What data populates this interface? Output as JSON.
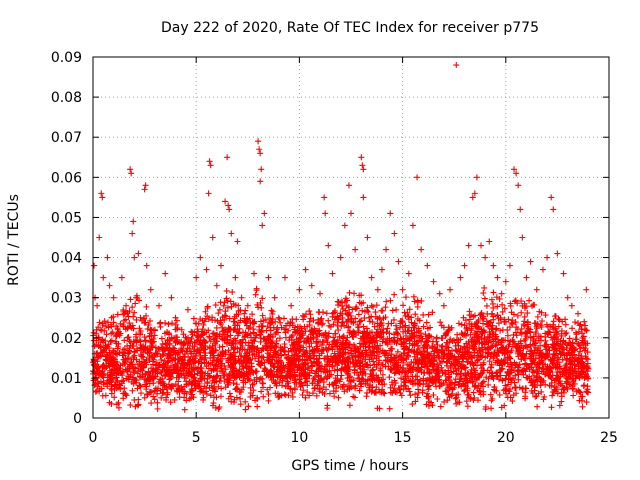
{
  "chart_data": {
    "type": "scatter",
    "title": "Day 222 of 2020, Rate Of TEC Index for receiver p775",
    "xlabel": "GPS time / hours",
    "ylabel": "ROTI / TECUs",
    "xlim": [
      0,
      25
    ],
    "ylim": [
      0,
      0.09
    ],
    "xticks": [
      0,
      5,
      10,
      15,
      20,
      25
    ],
    "yticks": [
      0,
      0.01,
      0.02,
      0.03,
      0.04,
      0.05,
      0.06,
      0.07,
      0.08,
      0.09
    ],
    "xtick_labels": [
      "0",
      "5",
      "10",
      "15",
      "20",
      "25"
    ],
    "ytick_labels": [
      "0",
      "0.01",
      "0.02",
      "0.03",
      "0.04",
      "0.05",
      "0.06",
      "0.07",
      "0.08",
      "0.09"
    ],
    "grid": true,
    "marker": "+",
    "color": "#ff0000",
    "series": [
      {
        "name": "ROTI",
        "points": [
          [
            0.0,
            0.011
          ],
          [
            0.05,
            0.038
          ],
          [
            0.1,
            0.03
          ],
          [
            0.15,
            0.021
          ],
          [
            0.2,
            0.028
          ],
          [
            0.3,
            0.045
          ],
          [
            0.35,
            0.022
          ],
          [
            0.4,
            0.056
          ],
          [
            0.45,
            0.055
          ],
          [
            0.5,
            0.035
          ],
          [
            0.6,
            0.018
          ],
          [
            0.7,
            0.04
          ],
          [
            0.8,
            0.033
          ],
          [
            0.9,
            0.025
          ],
          [
            1.0,
            0.03
          ],
          [
            1.2,
            0.022
          ],
          [
            1.4,
            0.035
          ],
          [
            1.6,
            0.028
          ],
          [
            1.8,
            0.062
          ],
          [
            1.85,
            0.061
          ],
          [
            1.9,
            0.046
          ],
          [
            1.95,
            0.049
          ],
          [
            2.0,
            0.04
          ],
          [
            2.1,
            0.03
          ],
          [
            2.2,
            0.041
          ],
          [
            2.3,
            0.025
          ],
          [
            2.5,
            0.057
          ],
          [
            2.55,
            0.058
          ],
          [
            2.6,
            0.038
          ],
          [
            2.8,
            0.032
          ],
          [
            3.0,
            0.022
          ],
          [
            3.2,
            0.028
          ],
          [
            3.5,
            0.036
          ],
          [
            3.8,
            0.03
          ],
          [
            4.0,
            0.025
          ],
          [
            4.3,
            0.022
          ],
          [
            4.6,
            0.027
          ],
          [
            5.0,
            0.035
          ],
          [
            5.2,
            0.04
          ],
          [
            5.5,
            0.037
          ],
          [
            5.6,
            0.056
          ],
          [
            5.65,
            0.064
          ],
          [
            5.7,
            0.063
          ],
          [
            5.8,
            0.045
          ],
          [
            6.0,
            0.033
          ],
          [
            6.2,
            0.038
          ],
          [
            6.4,
            0.054
          ],
          [
            6.5,
            0.065
          ],
          [
            6.55,
            0.053
          ],
          [
            6.6,
            0.052
          ],
          [
            6.7,
            0.046
          ],
          [
            6.9,
            0.035
          ],
          [
            7.0,
            0.044
          ],
          [
            7.2,
            0.03
          ],
          [
            7.5,
            0.028
          ],
          [
            7.8,
            0.036
          ],
          [
            8.0,
            0.069
          ],
          [
            8.05,
            0.067
          ],
          [
            8.1,
            0.066
          ],
          [
            8.15,
            0.062
          ],
          [
            8.1,
            0.059
          ],
          [
            8.2,
            0.048
          ],
          [
            8.3,
            0.051
          ],
          [
            8.5,
            0.035
          ],
          [
            8.8,
            0.03
          ],
          [
            9.0,
            0.025
          ],
          [
            9.3,
            0.035
          ],
          [
            9.6,
            0.028
          ],
          [
            10.0,
            0.032
          ],
          [
            10.3,
            0.037
          ],
          [
            10.6,
            0.033
          ],
          [
            11.0,
            0.031
          ],
          [
            11.2,
            0.055
          ],
          [
            11.25,
            0.051
          ],
          [
            11.4,
            0.043
          ],
          [
            11.6,
            0.036
          ],
          [
            12.0,
            0.04
          ],
          [
            12.2,
            0.048
          ],
          [
            12.4,
            0.058
          ],
          [
            12.5,
            0.051
          ],
          [
            12.7,
            0.042
          ],
          [
            13.0,
            0.065
          ],
          [
            13.05,
            0.063
          ],
          [
            13.1,
            0.062
          ],
          [
            13.1,
            0.055
          ],
          [
            13.3,
            0.045
          ],
          [
            13.5,
            0.035
          ],
          [
            13.8,
            0.032
          ],
          [
            14.0,
            0.037
          ],
          [
            14.2,
            0.042
          ],
          [
            14.4,
            0.051
          ],
          [
            14.6,
            0.046
          ],
          [
            14.8,
            0.039
          ],
          [
            15.0,
            0.032
          ],
          [
            15.3,
            0.036
          ],
          [
            15.5,
            0.048
          ],
          [
            15.7,
            0.06
          ],
          [
            15.9,
            0.042
          ],
          [
            16.2,
            0.038
          ],
          [
            16.5,
            0.034
          ],
          [
            16.8,
            0.031
          ],
          [
            17.0,
            0.028
          ],
          [
            17.3,
            0.032
          ],
          [
            17.6,
            0.088
          ],
          [
            17.8,
            0.035
          ],
          [
            18.0,
            0.038
          ],
          [
            18.2,
            0.043
          ],
          [
            18.4,
            0.055
          ],
          [
            18.5,
            0.056
          ],
          [
            18.6,
            0.06
          ],
          [
            18.8,
            0.043
          ],
          [
            19.0,
            0.04
          ],
          [
            19.2,
            0.044
          ],
          [
            19.4,
            0.038
          ],
          [
            19.6,
            0.035
          ],
          [
            19.8,
            0.031
          ],
          [
            20.0,
            0.034
          ],
          [
            20.2,
            0.038
          ],
          [
            20.4,
            0.062
          ],
          [
            20.5,
            0.061
          ],
          [
            20.6,
            0.058
          ],
          [
            20.7,
            0.052
          ],
          [
            20.8,
            0.045
          ],
          [
            21.0,
            0.035
          ],
          [
            21.2,
            0.039
          ],
          [
            21.5,
            0.032
          ],
          [
            21.8,
            0.037
          ],
          [
            22.0,
            0.04
          ],
          [
            22.2,
            0.055
          ],
          [
            22.3,
            0.052
          ],
          [
            22.5,
            0.041
          ],
          [
            22.8,
            0.036
          ],
          [
            23.0,
            0.03
          ],
          [
            23.2,
            0.028
          ],
          [
            23.5,
            0.026
          ],
          [
            23.8,
            0.024
          ],
          [
            23.9,
            0.032
          ]
        ],
        "band": {
          "x": [
            0,
            0.5,
            1,
            1.5,
            2,
            2.5,
            3,
            3.5,
            4,
            4.5,
            5,
            5.5,
            6,
            6.5,
            7,
            7.5,
            8,
            8.5,
            9,
            9.5,
            10,
            10.5,
            11,
            11.5,
            12,
            12.5,
            13,
            13.5,
            14,
            14.5,
            15,
            15.5,
            16,
            16.5,
            17,
            17.5,
            18,
            18.5,
            19,
            19.5,
            20,
            20.5,
            21,
            21.5,
            22,
            22.5,
            23,
            23.5,
            24
          ],
          "typical_low": [
            0.007,
            0.006,
            0.006,
            0.005,
            0.005,
            0.005,
            0.006,
            0.006,
            0.007,
            0.006,
            0.006,
            0.005,
            0.005,
            0.006,
            0.006,
            0.006,
            0.006,
            0.007,
            0.007,
            0.007,
            0.007,
            0.007,
            0.007,
            0.007,
            0.007,
            0.007,
            0.007,
            0.007,
            0.006,
            0.006,
            0.006,
            0.006,
            0.006,
            0.006,
            0.005,
            0.005,
            0.005,
            0.005,
            0.005,
            0.005,
            0.006,
            0.006,
            0.006,
            0.006,
            0.006,
            0.006,
            0.006,
            0.006,
            0.006
          ],
          "typical_high": [
            0.022,
            0.025,
            0.026,
            0.027,
            0.032,
            0.03,
            0.025,
            0.024,
            0.025,
            0.023,
            0.026,
            0.03,
            0.028,
            0.033,
            0.03,
            0.028,
            0.033,
            0.028,
            0.025,
            0.025,
            0.026,
            0.027,
            0.027,
            0.028,
            0.03,
            0.032,
            0.032,
            0.028,
            0.03,
            0.033,
            0.03,
            0.032,
            0.03,
            0.026,
            0.024,
            0.024,
            0.026,
            0.03,
            0.034,
            0.032,
            0.028,
            0.03,
            0.03,
            0.028,
            0.026,
            0.026,
            0.025,
            0.024,
            0.023
          ]
        }
      }
    ]
  }
}
